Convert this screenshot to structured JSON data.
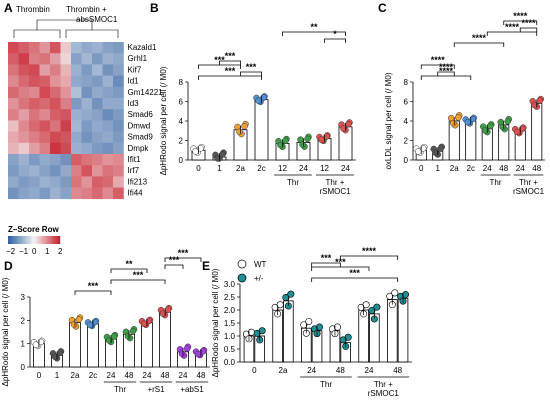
{
  "heatmap": {
    "panel_label": "A",
    "col_groups": [
      "Thrombin",
      "Thrombin + absSMOC1"
    ],
    "genes": [
      "Kazald1",
      "Grhl1",
      "Kif7",
      "Id1",
      "Gm14221",
      "Id3",
      "Smad6",
      "Dmwd",
      "Smad9",
      "Dmpk",
      "Ifit1",
      "Irf7",
      "Ifi213",
      "Ifi44"
    ],
    "legend_title": "Z–Score Row",
    "legend_ticks": [
      "−2",
      "−1",
      "0",
      "1",
      "2"
    ],
    "colors": {
      "low": "#2e5fa1",
      "mid": "#f4f4f4",
      "high": "#c81e2b"
    }
  },
  "chart_data": [
    {
      "id": "B",
      "panel_label": "B",
      "type": "bar",
      "ylabel": "ΔpHRodo signal per cell (/ M0)",
      "ylim": [
        0,
        8
      ],
      "yticks": [
        0,
        2,
        4,
        6,
        8
      ],
      "categories": [
        "0",
        "1",
        "2a",
        "2c",
        "12",
        "24",
        "12",
        "24"
      ],
      "group_labels": [
        {
          "text": "Thr",
          "from": 4,
          "to": 5
        },
        {
          "text": "Thr +\nrSMOC1",
          "from": 6,
          "to": 7
        }
      ],
      "values": [
        1.0,
        0.3,
        3.1,
        6.2,
        1.7,
        1.8,
        2.2,
        3.4
      ],
      "point_colors": [
        "#ffffff",
        "#555555",
        "#f0a030",
        "#4d8fd8",
        "#3f9d48",
        "#3f9d48",
        "#e05050",
        "#e05050"
      ],
      "significance": [
        {
          "from": 0,
          "to": 3,
          "label": "***"
        },
        {
          "from": 0,
          "to": 2,
          "label": "***"
        },
        {
          "from": 2,
          "to": 3,
          "label": "***"
        },
        {
          "from": 1,
          "to": 2,
          "label": "***"
        },
        {
          "from": 4,
          "to": 7,
          "label": "**"
        },
        {
          "from": 6,
          "to": 7,
          "label": "*"
        }
      ]
    },
    {
      "id": "C",
      "panel_label": "C",
      "type": "bar",
      "ylabel": "oxLDL signal per cell (/ M0)",
      "ylim": [
        0,
        8
      ],
      "yticks": [
        0,
        2,
        4,
        6,
        8
      ],
      "categories": [
        "0",
        "1",
        "2a",
        "2c",
        "24",
        "48",
        "24",
        "48"
      ],
      "group_labels": [
        {
          "text": "Thr",
          "from": 4,
          "to": 5
        },
        {
          "text": "Thr +\nrSMOC1",
          "from": 6,
          "to": 7
        }
      ],
      "values": [
        1.0,
        0.9,
        4.0,
        4.0,
        3.2,
        3.6,
        3.0,
        5.8
      ],
      "point_colors": [
        "#ffffff",
        "#555555",
        "#f0a030",
        "#4d8fd8",
        "#3f9d48",
        "#3f9d48",
        "#e05050",
        "#e05050"
      ],
      "significance": [
        {
          "from": 0,
          "to": 3,
          "label": "****"
        },
        {
          "from": 0,
          "to": 2,
          "label": "****"
        },
        {
          "from": 1,
          "to": 2,
          "label": "****"
        },
        {
          "from": 2,
          "to": 5,
          "label": "****"
        },
        {
          "from": 4,
          "to": 7,
          "label": "****"
        },
        {
          "from": 5,
          "to": 7,
          "label": "****"
        },
        {
          "from": 6,
          "to": 7,
          "label": "****"
        }
      ]
    },
    {
      "id": "D",
      "panel_label": "D",
      "type": "bar",
      "ylabel": "ΔpHRodo signal per cell (/ M0)",
      "ylim": [
        0,
        3
      ],
      "yticks": [
        0,
        1,
        2,
        3
      ],
      "categories": [
        "0",
        "1",
        "2a",
        "2c",
        "24",
        "48",
        "24",
        "48",
        "24",
        "48"
      ],
      "group_labels": [
        {
          "text": "Thr",
          "from": 4,
          "to": 5
        },
        {
          "text": "+rS1",
          "from": 6,
          "to": 7
        },
        {
          "text": "+abS1",
          "from": 8,
          "to": 9
        }
      ],
      "values": [
        1.0,
        0.5,
        1.9,
        1.85,
        1.2,
        1.4,
        1.9,
        2.35,
        0.65,
        0.6
      ],
      "point_colors": [
        "#ffffff",
        "#555555",
        "#f0a030",
        "#4d8fd8",
        "#3f9d48",
        "#3f9d48",
        "#e05050",
        "#e05050",
        "#a040e0",
        "#a040e0"
      ],
      "significance": [
        {
          "from": 2,
          "to": 4,
          "label": "***"
        },
        {
          "from": 4,
          "to": 7,
          "label": "***"
        },
        {
          "from": 4,
          "to": 6,
          "label": "**"
        },
        {
          "from": 7,
          "to": 9,
          "label": "***"
        },
        {
          "from": 7,
          "to": 8,
          "label": "***"
        }
      ]
    },
    {
      "id": "E",
      "panel_label": "E",
      "type": "bar",
      "ylabel": "ΔpHRodo signal per cell (/ M0)",
      "ylim": [
        0,
        3
      ],
      "yticks": [
        0.0,
        0.5,
        1.0,
        1.5,
        2.0,
        2.5,
        3.0
      ],
      "categories": [
        "0",
        "2a",
        "24",
        "48",
        "24",
        "48"
      ],
      "group_labels": [
        {
          "text": "Thr",
          "from": 2,
          "to": 3
        },
        {
          "text": "Thr +\nrSMOC1",
          "from": 4,
          "to": 5
        }
      ],
      "series": [
        {
          "name": "WT",
          "values": [
            1.0,
            2.0,
            1.3,
            1.2,
            2.0,
            2.4
          ],
          "color": "#ffffff"
        },
        {
          "name": "+/-",
          "values": [
            1.0,
            2.35,
            1.2,
            0.75,
            1.85,
            2.45
          ],
          "color": "#1f8f94"
        }
      ],
      "significance": [
        {
          "from": 2,
          "to": 5,
          "label": "***"
        },
        {
          "from": 2,
          "to": 4,
          "label": "***"
        },
        {
          "from": 3,
          "to": 5,
          "label": "****"
        },
        {
          "from": 2,
          "to": 3,
          "label": "***"
        }
      ]
    }
  ]
}
